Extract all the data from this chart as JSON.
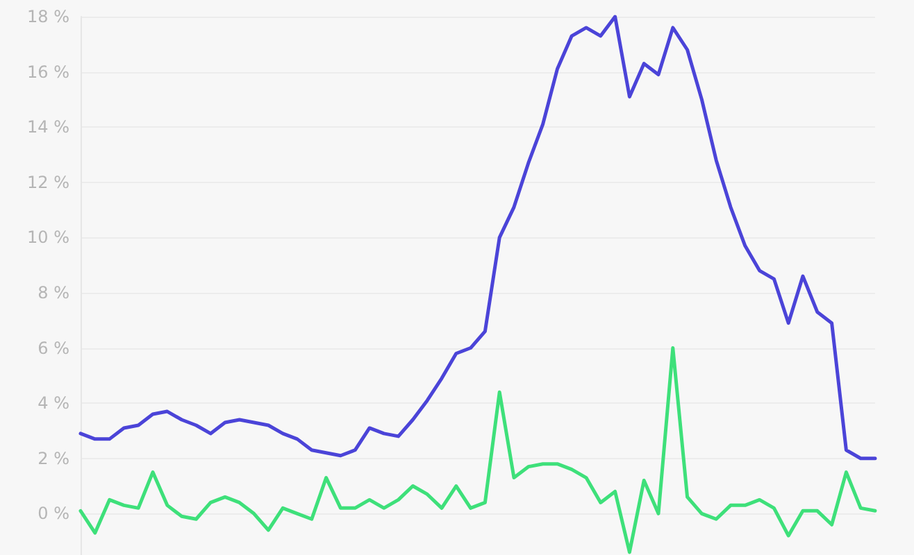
{
  "chart_data": {
    "type": "line",
    "categories": [
      null,
      null,
      null,
      null,
      null,
      null,
      null,
      null,
      null,
      null,
      null,
      null,
      null,
      null,
      null,
      null,
      null,
      null,
      null,
      null,
      null,
      null,
      null,
      null,
      null,
      null,
      null,
      null,
      null,
      null,
      null,
      null,
      null,
      null,
      null,
      null,
      null,
      null,
      null,
      null,
      null,
      null,
      null,
      null,
      null,
      null,
      null,
      null,
      null,
      null,
      null,
      null,
      null,
      null,
      null,
      null
    ],
    "series": [
      {
        "color": "#4b44d8",
        "values": [
          2.9,
          2.7,
          2.7,
          3.1,
          3.2,
          3.6,
          3.7,
          3.4,
          3.2,
          2.9,
          3.3,
          3.4,
          3.3,
          3.2,
          2.9,
          2.7,
          2.3,
          2.2,
          2.1,
          2.3,
          3.1,
          2.9,
          2.8,
          3.4,
          4.1,
          4.9,
          5.8,
          6.0,
          6.6,
          10.0,
          11.1,
          12.7,
          14.1,
          16.1,
          17.3,
          17.6,
          17.3,
          18.0,
          15.1,
          16.3,
          15.9,
          17.6,
          16.8,
          15.0,
          12.8,
          11.1,
          9.7,
          8.8,
          8.5,
          6.9,
          8.6,
          7.3,
          6.9,
          2.3,
          2.0,
          2.0
        ]
      },
      {
        "color": "#3ee07a",
        "values": [
          0.1,
          -0.7,
          0.5,
          0.3,
          0.2,
          1.5,
          0.3,
          -0.1,
          -0.2,
          0.4,
          0.6,
          0.4,
          0.0,
          -0.6,
          0.2,
          0.0,
          -0.2,
          1.3,
          0.2,
          0.2,
          0.5,
          0.2,
          0.5,
          1.0,
          0.7,
          0.2,
          1.0,
          0.2,
          0.4,
          4.4,
          1.3,
          1.7,
          1.8,
          1.8,
          1.6,
          1.3,
          0.4,
          0.8,
          -1.4,
          1.2,
          0.0,
          6.0,
          0.6,
          0.0,
          -0.2,
          0.3,
          0.3,
          0.5,
          0.2,
          -0.8,
          0.1,
          0.1,
          -0.4,
          1.5,
          0.2,
          0.1
        ]
      }
    ],
    "ylim": [
      -1.5,
      18
    ],
    "yticks": [
      {
        "value": 0,
        "label": "0 %"
      },
      {
        "value": 2,
        "label": "2 %"
      },
      {
        "value": 4,
        "label": "4 %"
      },
      {
        "value": 6,
        "label": "6 %"
      },
      {
        "value": 8,
        "label": "8 %"
      },
      {
        "value": 10,
        "label": "10 %"
      },
      {
        "value": 12,
        "label": "12 %"
      },
      {
        "value": 14,
        "label": "14 %"
      },
      {
        "value": 16,
        "label": "16 %"
      },
      {
        "value": 18,
        "label": "18 %"
      }
    ],
    "grid": "y",
    "line_style": "solid"
  }
}
